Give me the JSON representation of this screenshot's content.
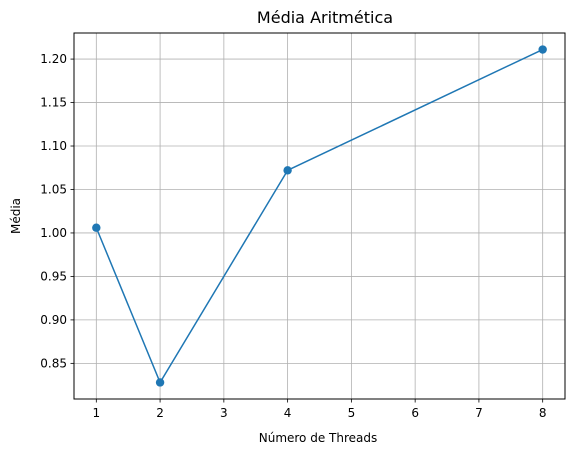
{
  "chart_data": {
    "type": "line",
    "title": "Média Aritmética",
    "xlabel": "Número de Threads",
    "ylabel": "Média",
    "x": [
      1,
      2,
      4,
      8
    ],
    "series": [
      {
        "values": [
          1.006,
          0.828,
          1.072,
          1.211
        ],
        "color": "#1f77b4",
        "marker": "circle"
      }
    ],
    "xlim": [
      0.65,
      8.35
    ],
    "ylim": [
      0.809,
      1.23
    ],
    "xticks": [
      "1",
      "2",
      "3",
      "4",
      "5",
      "6",
      "7",
      "8"
    ],
    "yticks": [
      "0.85",
      "0.90",
      "0.95",
      "1.00",
      "1.05",
      "1.10",
      "1.15",
      "1.20"
    ],
    "grid": true,
    "colors": {
      "grid": "#b0b0b0",
      "axis": "#000000",
      "line": "#1f77b4"
    }
  }
}
